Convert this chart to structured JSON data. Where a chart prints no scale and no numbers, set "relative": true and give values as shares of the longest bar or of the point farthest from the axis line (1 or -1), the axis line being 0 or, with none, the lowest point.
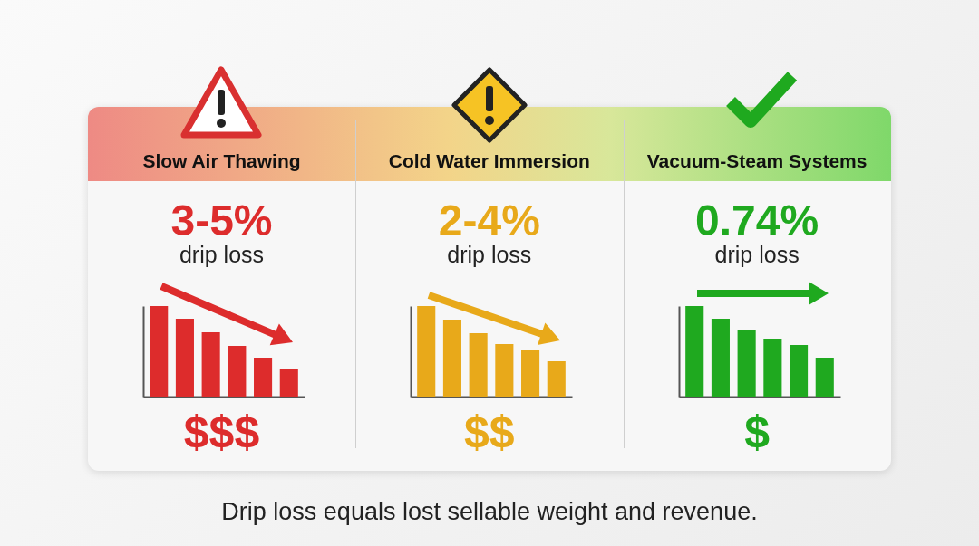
{
  "chart_data": [
    {
      "type": "bar",
      "title": "Slow Air Thawing",
      "subtitle": "3-5%",
      "annotations": [
        "drip loss",
        "$$$"
      ],
      "categories": [
        null,
        null,
        null,
        null,
        null,
        null
      ],
      "relative": true,
      "series": [
        {
          "color": "#dd2c2c",
          "values": [
            1,
            0.86,
            0.71,
            0.56,
            0.43,
            0.31
          ]
        }
      ]
    },
    {
      "type": "bar",
      "title": "Cold Water Immersion",
      "subtitle": "2-4%",
      "annotations": [
        "drip loss",
        "$$"
      ],
      "categories": [
        null,
        null,
        null,
        null,
        null,
        null
      ],
      "relative": true,
      "series": [
        {
          "color": "#e8a91a",
          "values": [
            1,
            0.85,
            0.7,
            0.58,
            0.51,
            0.39
          ]
        }
      ]
    },
    {
      "type": "bar",
      "title": "Vacuum-Steam Systems",
      "subtitle": "0.74%",
      "annotations": [
        "drip loss",
        "$"
      ],
      "categories": [
        null,
        null,
        null,
        null,
        null,
        null
      ],
      "relative": true,
      "series": [
        {
          "color": "#1fa91f",
          "values": [
            1,
            0.86,
            0.73,
            0.64,
            0.57,
            0.43
          ]
        }
      ]
    },
    {
      "type": "other",
      "annotations": [
        "Drip loss equals lost sellable weight and revenue."
      ]
    }
  ]
}
